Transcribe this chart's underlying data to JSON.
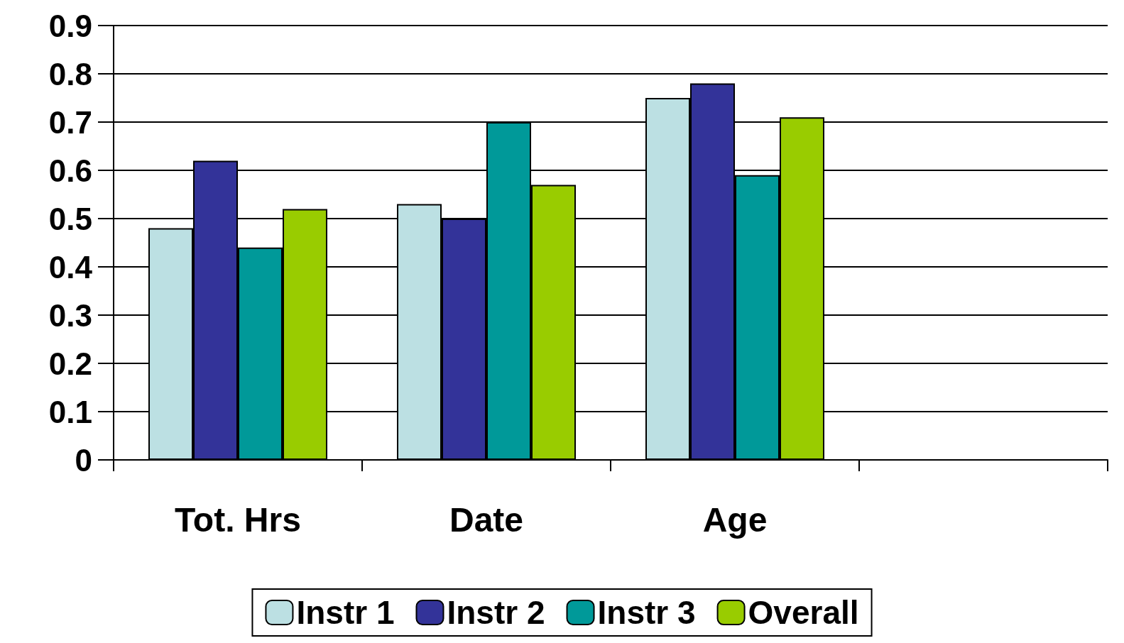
{
  "chart_data": {
    "type": "bar",
    "categories": [
      "Tot. Hrs",
      "Date",
      "Age",
      null
    ],
    "series": [
      {
        "name": "Instr 1",
        "color": "#bce0e3",
        "values": [
          0.48,
          0.53,
          0.75,
          null
        ]
      },
      {
        "name": "Instr 2",
        "color": "#333399",
        "values": [
          0.62,
          0.5,
          0.78,
          null
        ]
      },
      {
        "name": "Instr 3",
        "color": "#009999",
        "values": [
          0.44,
          0.7,
          0.59,
          null
        ]
      },
      {
        "name": "Overall",
        "color": "#99cc00",
        "values": [
          0.52,
          0.57,
          0.71,
          null
        ]
      }
    ],
    "ylim": [
      0,
      0.9
    ],
    "yticks": [
      0,
      0.1,
      0.2,
      0.3,
      0.4,
      0.5,
      0.6,
      0.7,
      0.8,
      0.9
    ],
    "grid": "y",
    "legend": "bottom"
  }
}
